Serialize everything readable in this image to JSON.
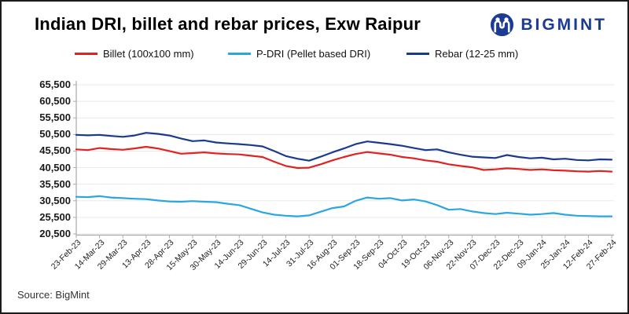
{
  "title": "Indian DRI, billet and rebar prices, Exw Raipur",
  "logo": {
    "text": "BIGMINT"
  },
  "source": "Source: BigMint",
  "colors": {
    "brand_navy": "#1b3b94",
    "billet_red": "#e02222",
    "pdri_blue": "#2ba7e0",
    "rebar_navy": "#1a3a8c",
    "gridline": "#e9e9e9",
    "axis": "#aaaaaa"
  },
  "chart_data": {
    "type": "line",
    "title": "Indian DRI, billet and rebar prices, Exw Raipur",
    "xlabel": "",
    "ylabel": "",
    "ylim": [
      20500,
      65500
    ],
    "grid": "horizontal",
    "legend_position": "top",
    "y_ticks": [
      65500,
      60500,
      55500,
      50500,
      45500,
      40500,
      35500,
      30500,
      25500,
      20500
    ],
    "y_tick_labels": [
      "65,500",
      "60,500",
      "55,500",
      "50,500",
      "45,500",
      "40,500",
      "35,500",
      "30,500",
      "25,500",
      "20,500"
    ],
    "x_tick_labels": [
      "23-Feb-23",
      "14-Mar-23",
      "29-Mar-23",
      "13-Apr-23",
      "28-Apr-23",
      "15-May-23",
      "30-May-23",
      "14-Jun-23",
      "29-Jun-23",
      "14-Jul-23",
      "31-Jul-23",
      "16-Aug-23",
      "01-Sep-23",
      "18-Sep-23",
      "04-Oct-23",
      "19-Oct-23",
      "06-Nov-23",
      "22-Nov-23",
      "07-Dec-23",
      "22-Dec-23",
      "09-Jan-24",
      "25-Jan-24",
      "12-Feb-24",
      "27-Feb-24"
    ],
    "series": [
      {
        "name": "Billet (100x100 mm)",
        "color": "#e02222",
        "values": [
          46000,
          45800,
          46400,
          46100,
          45900,
          46300,
          46800,
          46300,
          45500,
          44700,
          44900,
          45100,
          44800,
          44600,
          44500,
          44100,
          43700,
          42300,
          41000,
          40400,
          40500,
          41500,
          42700,
          43700,
          44600,
          45200,
          44800,
          44400,
          43700,
          43300,
          42700,
          42300,
          41500,
          41000,
          40600,
          39800,
          40000,
          40300,
          40100,
          39800,
          40000,
          39700,
          39600,
          39400,
          39300,
          39500,
          39300
        ]
      },
      {
        "name": "P-DRI (Pellet based DRI)",
        "color": "#2ba7e0",
        "values": [
          31700,
          31600,
          31900,
          31500,
          31300,
          31100,
          31000,
          30600,
          30300,
          30200,
          30400,
          30200,
          30100,
          29600,
          29200,
          28100,
          27000,
          26300,
          26000,
          25800,
          26100,
          27200,
          28300,
          28800,
          30500,
          31500,
          31100,
          31300,
          30600,
          30900,
          30300,
          29200,
          27800,
          28000,
          27300,
          26800,
          26500,
          26900,
          26600,
          26300,
          26500,
          26800,
          26300,
          26000,
          25900,
          25800,
          25800
        ]
      },
      {
        "name": "Rebar (12-25 mm)",
        "color": "#1a3a8c",
        "values": [
          50400,
          50250,
          50400,
          50050,
          49800,
          50200,
          51000,
          50700,
          50200,
          49300,
          48500,
          48700,
          48100,
          47800,
          47600,
          47300,
          46900,
          45500,
          44000,
          43200,
          42600,
          43800,
          45100,
          46300,
          47600,
          48400,
          48000,
          47600,
          47100,
          46400,
          45800,
          46000,
          45100,
          44400,
          43800,
          43600,
          43400,
          44300,
          43700,
          43300,
          43500,
          43000,
          43200,
          42800,
          42700,
          43000,
          42900
        ]
      }
    ]
  }
}
